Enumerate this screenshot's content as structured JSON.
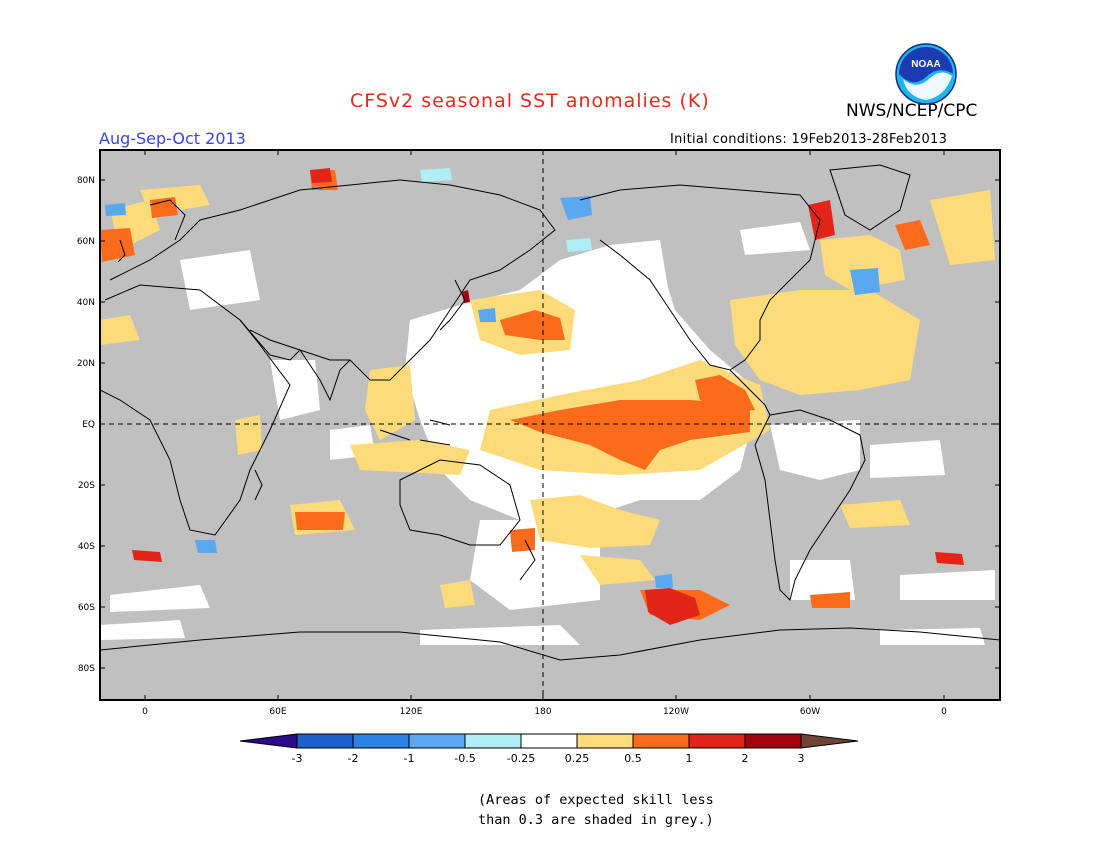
{
  "header": {
    "title": "CFSv2 seasonal SST anomalies (K)",
    "season": "Aug-Sep-Oct 2013",
    "initial_conditions": "Initial conditions: 19Feb2013-28Feb2013",
    "agency": "NWS/NCEP/CPC",
    "logo_text": "NOAA"
  },
  "map": {
    "lat_labels": [
      "80N",
      "60N",
      "40N",
      "20N",
      "EQ",
      "20S",
      "40S",
      "60S",
      "80S"
    ],
    "lon_labels": [
      "0",
      "60E",
      "120E",
      "180",
      "120W",
      "60W",
      "0"
    ],
    "colors": {
      "land": "#c0c0c0",
      "ocean_neutral": "#ffffff",
      "border": "#000000"
    }
  },
  "colorbar": {
    "tick_labels": [
      "-3",
      "-2",
      "-1",
      "-0.5",
      "-0.25",
      "0.25",
      "0.5",
      "1",
      "2",
      "3"
    ],
    "colors": [
      "#2a0b8c",
      "#1e5fd0",
      "#2b81e6",
      "#5aa8f0",
      "#b0eef5",
      "#ffffff",
      "#fddb7a",
      "#fb6b1c",
      "#e32418",
      "#a4000f",
      "#6e4432"
    ]
  },
  "footnote": {
    "line1": "(Areas of expected skill less",
    "line2": "than 0.3 are shaded in grey.)"
  }
}
